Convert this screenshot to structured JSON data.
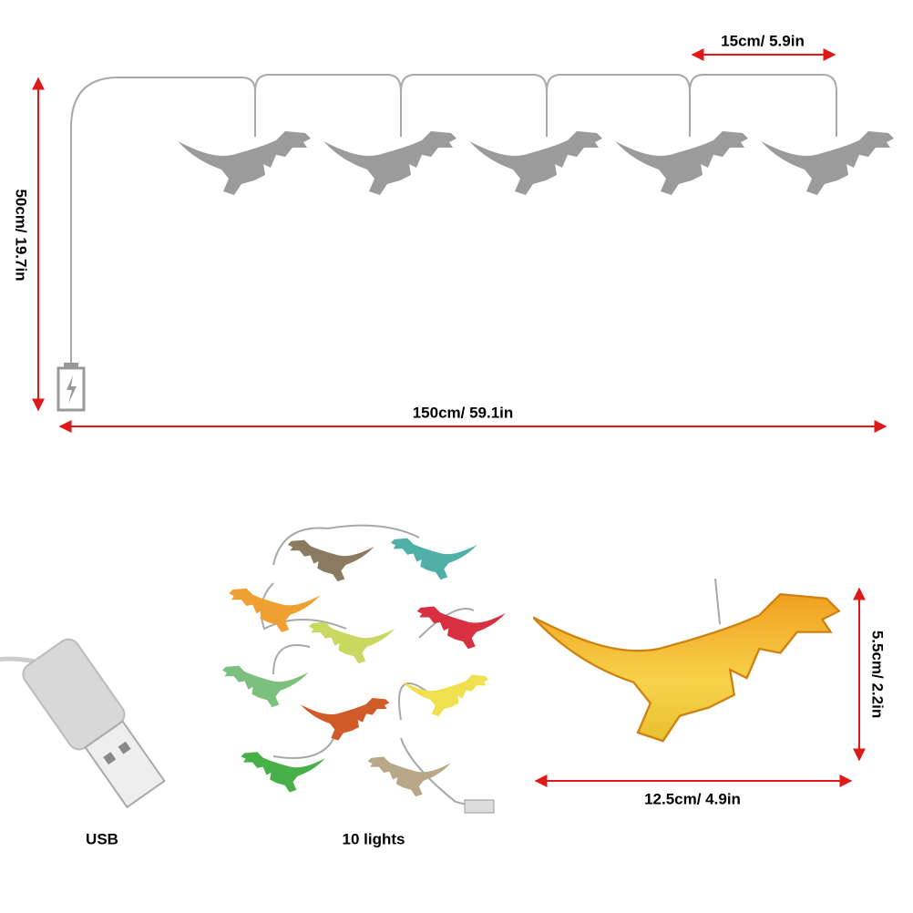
{
  "dimensions": {
    "segment": "15cm/ 5.9in",
    "height": "50cm/ 19.7in",
    "total": "150cm/ 59.1in",
    "dino_height": "5.5cm/ 2.2in",
    "dino_length": "12.5cm/ 4.9in"
  },
  "captions": {
    "usb": "USB",
    "lights": "10 lights"
  }
}
